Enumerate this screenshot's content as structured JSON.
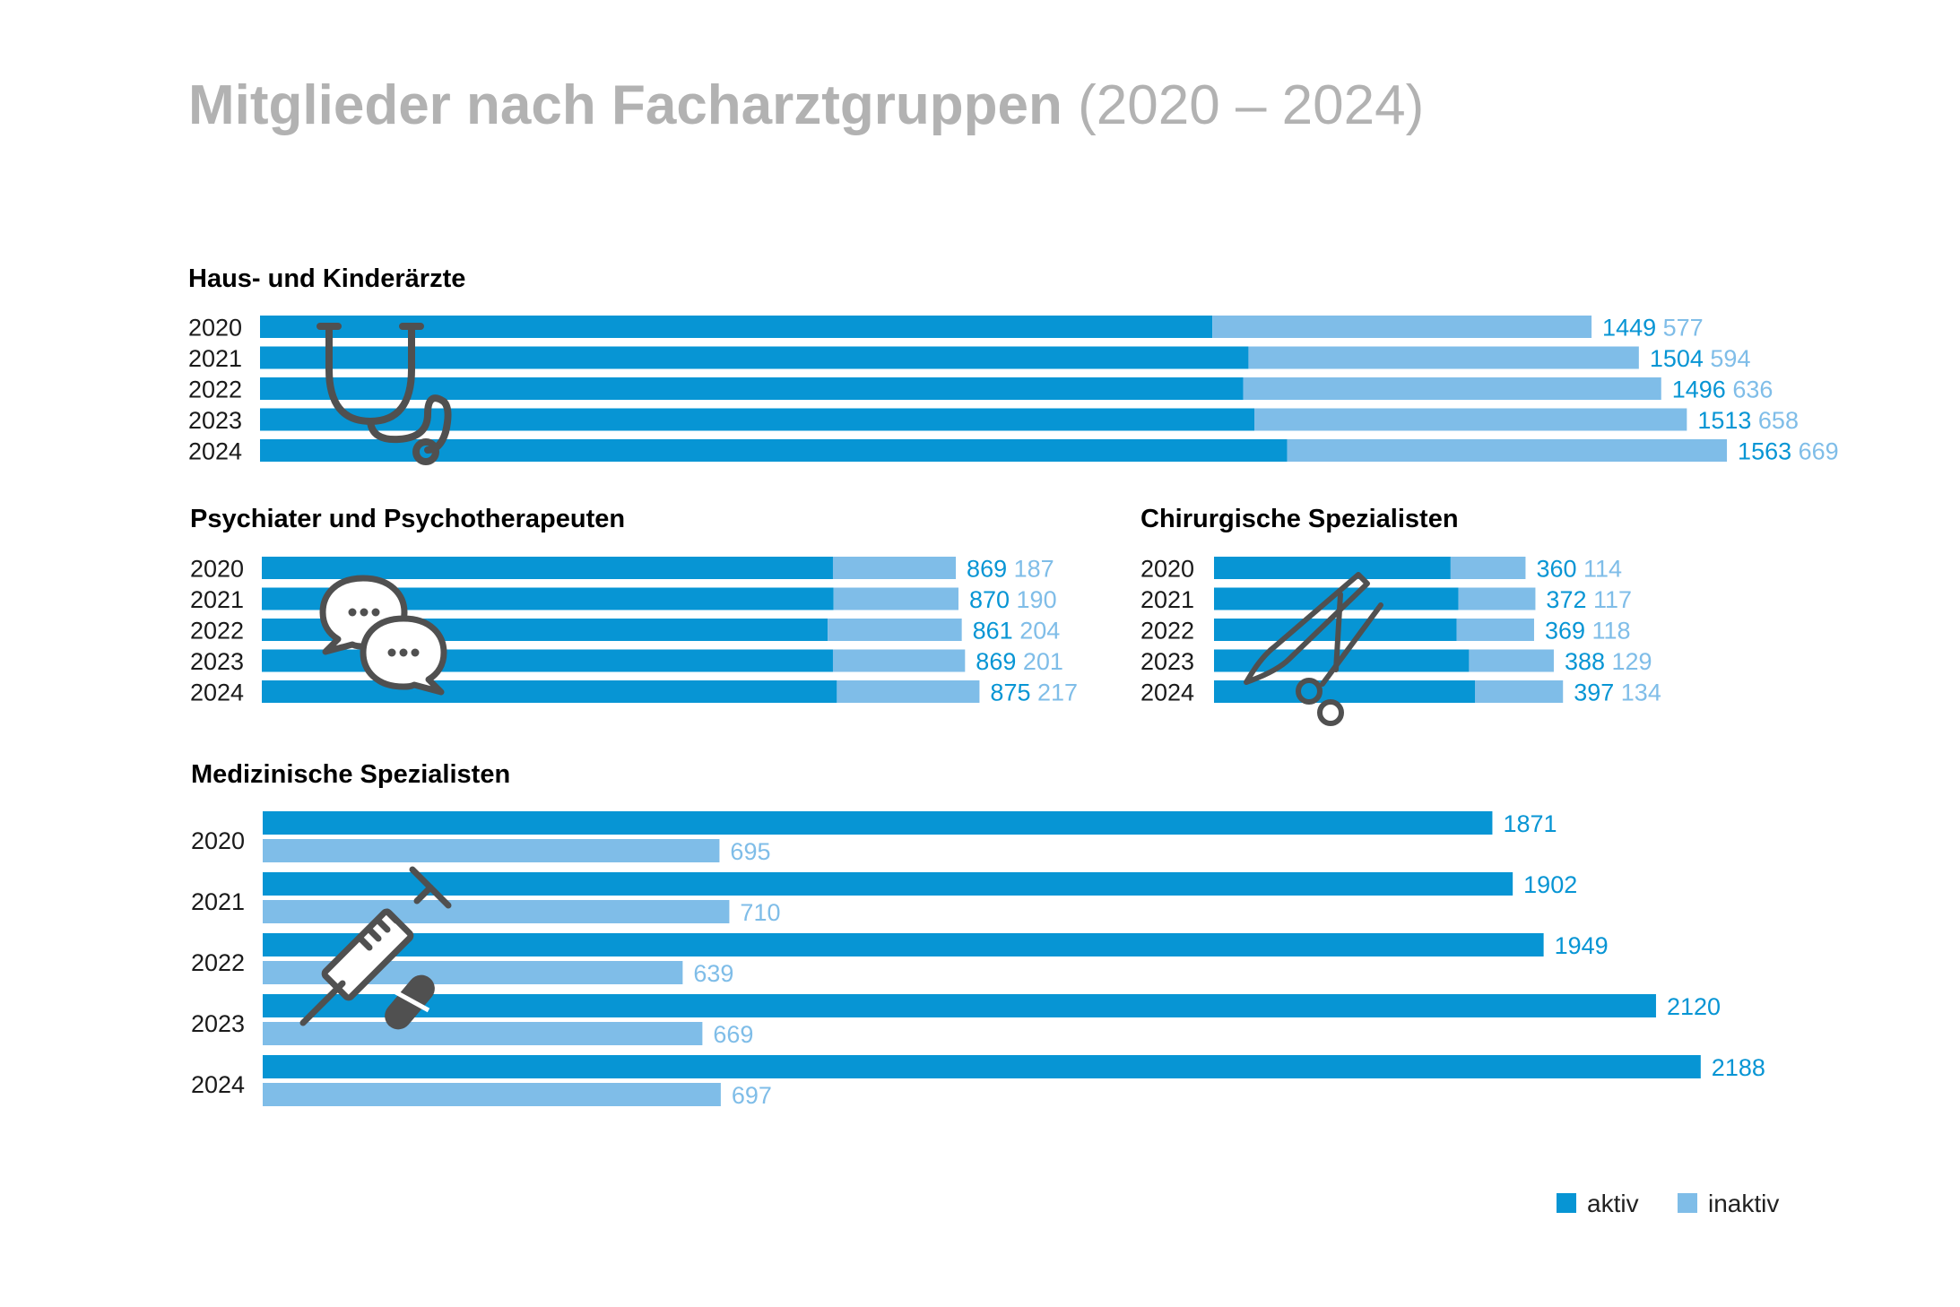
{
  "title": "Mitglieder nach Facharztgruppen",
  "title_years": "(2020 – 2024)",
  "colors": {
    "aktiv": "#0795d4",
    "inaktiv": "#7fbde8",
    "year_text": "#1a1a1a",
    "heading": "#000000",
    "icon": "#505050"
  },
  "legend": {
    "aktiv": "aktiv",
    "inaktiv": "inaktiv"
  },
  "chart_data": [
    {
      "type": "bar",
      "layout": "stacked",
      "title": "Haus- und Kinderärzte",
      "categories": [
        "2020",
        "2021",
        "2022",
        "2023",
        "2024"
      ],
      "series": [
        {
          "name": "aktiv",
          "values": [
            1449,
            1504,
            1496,
            1513,
            1563
          ]
        },
        {
          "name": "inaktiv",
          "values": [
            577,
            594,
            636,
            658,
            669
          ]
        }
      ],
      "icon": "stethoscope-icon"
    },
    {
      "type": "bar",
      "layout": "stacked",
      "title": "Psychiater und Psychotherapeuten",
      "categories": [
        "2020",
        "2021",
        "2022",
        "2023",
        "2024"
      ],
      "series": [
        {
          "name": "aktiv",
          "values": [
            869,
            870,
            861,
            869,
            875
          ]
        },
        {
          "name": "inaktiv",
          "values": [
            187,
            190,
            204,
            201,
            217
          ]
        }
      ],
      "icon": "speech-bubbles-icon"
    },
    {
      "type": "bar",
      "layout": "stacked",
      "title": "Chirurgische Spezialisten",
      "categories": [
        "2020",
        "2021",
        "2022",
        "2023",
        "2024"
      ],
      "series": [
        {
          "name": "aktiv",
          "values": [
            360,
            372,
            369,
            388,
            397
          ]
        },
        {
          "name": "inaktiv",
          "values": [
            114,
            117,
            118,
            129,
            134
          ]
        }
      ],
      "icon": "scalpel-scissors-icon"
    },
    {
      "type": "bar",
      "layout": "grouped",
      "title": "Medizinische Spezialisten",
      "categories": [
        "2020",
        "2021",
        "2022",
        "2023",
        "2024"
      ],
      "series": [
        {
          "name": "aktiv",
          "values": [
            1871,
            1902,
            1949,
            2120,
            2188
          ]
        },
        {
          "name": "inaktiv",
          "values": [
            695,
            710,
            639,
            669,
            697
          ]
        }
      ],
      "icon": "syringe-pill-icon"
    }
  ]
}
